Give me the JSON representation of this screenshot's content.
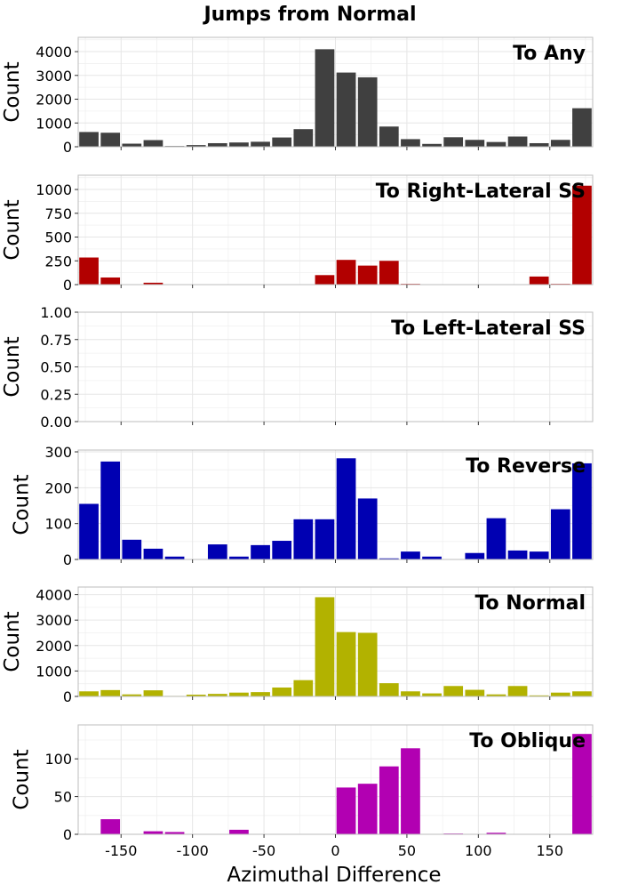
{
  "figure": {
    "title": "Jumps from Normal",
    "xlabel": "Azimuthal Difference",
    "xticks": [
      "-150",
      "-100",
      "-50",
      "0",
      "50",
      "100",
      "150"
    ]
  },
  "chart_data": [
    {
      "type": "bar",
      "title": "To Any",
      "xlabel": "Azimuthal Difference",
      "ylabel": "Count",
      "xlim": [
        -180,
        180
      ],
      "ylim": [
        0,
        4600
      ],
      "yticks": [
        0,
        1000,
        2000,
        3000,
        4000
      ],
      "ytick_labels": [
        "0",
        "1000",
        "2000",
        "3000",
        "4000"
      ],
      "grid": true,
      "color": "#404040",
      "bin_centers": [
        -172.5,
        -157.5,
        -142.5,
        -127.5,
        -112.5,
        -97.5,
        -82.5,
        -67.5,
        -52.5,
        -37.5,
        -22.5,
        -7.5,
        7.5,
        22.5,
        37.5,
        52.5,
        67.5,
        82.5,
        97.5,
        112.5,
        127.5,
        142.5,
        157.5,
        172.5
      ],
      "values": [
        620,
        590,
        130,
        280,
        30,
        70,
        150,
        180,
        210,
        390,
        740,
        4100,
        3120,
        2920,
        850,
        320,
        120,
        400,
        290,
        200,
        430,
        150,
        290,
        1620
      ]
    },
    {
      "type": "bar",
      "title": "To Right-Lateral SS",
      "xlabel": "Azimuthal Difference",
      "ylabel": "Count",
      "xlim": [
        -180,
        180
      ],
      "ylim": [
        0,
        1150
      ],
      "yticks": [
        0,
        250,
        500,
        750,
        1000
      ],
      "ytick_labels": [
        "0",
        "250",
        "500",
        "750",
        "1000"
      ],
      "grid": true,
      "color": "#b20000",
      "bin_centers": [
        -172.5,
        -157.5,
        -142.5,
        -127.5,
        -112.5,
        -97.5,
        -82.5,
        -67.5,
        -52.5,
        -37.5,
        -22.5,
        -7.5,
        7.5,
        22.5,
        37.5,
        52.5,
        67.5,
        82.5,
        97.5,
        112.5,
        127.5,
        142.5,
        157.5,
        172.5
      ],
      "values": [
        285,
        75,
        0,
        20,
        0,
        0,
        0,
        0,
        0,
        0,
        0,
        100,
        260,
        200,
        250,
        8,
        0,
        0,
        0,
        0,
        0,
        85,
        8,
        1040
      ]
    },
    {
      "type": "bar",
      "title": "To Left-Lateral SS",
      "xlabel": "Azimuthal Difference",
      "ylabel": "Count",
      "xlim": [
        -180,
        180
      ],
      "ylim": [
        0,
        1
      ],
      "yticks": [
        0,
        0.25,
        0.5,
        0.75,
        1
      ],
      "ytick_labels": [
        "0.00",
        "0.25",
        "0.50",
        "0.75",
        "1.00"
      ],
      "grid": true,
      "color": "#00b200",
      "bin_centers": [],
      "values": []
    },
    {
      "type": "bar",
      "title": "To Reverse",
      "xlabel": "Azimuthal Difference",
      "ylabel": "Count",
      "xlim": [
        -180,
        180
      ],
      "ylim": [
        0,
        305
      ],
      "yticks": [
        0,
        100,
        200,
        300
      ],
      "ytick_labels": [
        "0",
        "100",
        "200",
        "300"
      ],
      "grid": true,
      "color": "#0000b2",
      "bin_centers": [
        -172.5,
        -157.5,
        -142.5,
        -127.5,
        -112.5,
        -97.5,
        -82.5,
        -67.5,
        -52.5,
        -37.5,
        -22.5,
        -7.5,
        7.5,
        22.5,
        37.5,
        52.5,
        67.5,
        82.5,
        97.5,
        112.5,
        127.5,
        142.5,
        157.5,
        172.5
      ],
      "values": [
        155,
        273,
        55,
        30,
        8,
        0,
        42,
        8,
        40,
        52,
        112,
        112,
        282,
        170,
        3,
        22,
        8,
        0,
        18,
        115,
        25,
        22,
        140,
        268
      ]
    },
    {
      "type": "bar",
      "title": "To Normal",
      "xlabel": "Azimuthal Difference",
      "ylabel": "Count",
      "xlim": [
        -180,
        180
      ],
      "ylim": [
        0,
        4300
      ],
      "yticks": [
        0,
        1000,
        2000,
        3000,
        4000
      ],
      "ytick_labels": [
        "0",
        "1000",
        "2000",
        "3000",
        "4000"
      ],
      "grid": true,
      "color": "#b2b200",
      "bin_centers": [
        -172.5,
        -157.5,
        -142.5,
        -127.5,
        -112.5,
        -97.5,
        -82.5,
        -67.5,
        -52.5,
        -37.5,
        -22.5,
        -7.5,
        7.5,
        22.5,
        37.5,
        52.5,
        67.5,
        82.5,
        97.5,
        112.5,
        127.5,
        142.5,
        157.5,
        172.5
      ],
      "values": [
        200,
        250,
        80,
        240,
        20,
        70,
        100,
        150,
        170,
        350,
        640,
        3900,
        2530,
        2500,
        520,
        200,
        120,
        410,
        260,
        80,
        410,
        40,
        150,
        200
      ]
    },
    {
      "type": "bar",
      "title": "To Oblique",
      "xlabel": "Azimuthal Difference",
      "ylabel": "Count",
      "xlim": [
        -180,
        180
      ],
      "ylim": [
        0,
        145
      ],
      "yticks": [
        0,
        50,
        100
      ],
      "ytick_labels": [
        "0",
        "50",
        "100"
      ],
      "grid": true,
      "color": "#b200b2",
      "bin_centers": [
        -172.5,
        -157.5,
        -142.5,
        -127.5,
        -112.5,
        -97.5,
        -82.5,
        -67.5,
        -52.5,
        -37.5,
        -22.5,
        -7.5,
        7.5,
        22.5,
        37.5,
        52.5,
        67.5,
        82.5,
        97.5,
        112.5,
        127.5,
        142.5,
        157.5,
        172.5
      ],
      "values": [
        0,
        20,
        0,
        4,
        3,
        0,
        0,
        6,
        0,
        0,
        0,
        0,
        62,
        67,
        90,
        114,
        0,
        1,
        0,
        2,
        0,
        0,
        0,
        133
      ]
    }
  ]
}
